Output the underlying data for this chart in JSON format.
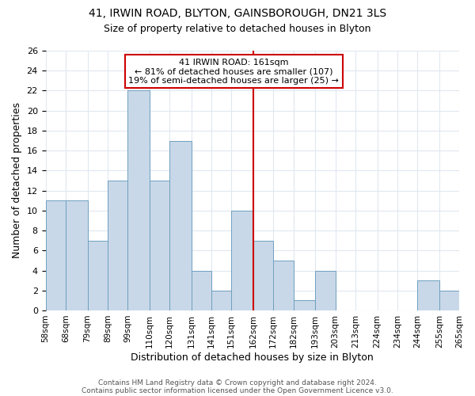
{
  "title1": "41, IRWIN ROAD, BLYTON, GAINSBOROUGH, DN21 3LS",
  "title2": "Size of property relative to detached houses in Blyton",
  "xlabel": "Distribution of detached houses by size in Blyton",
  "ylabel": "Number of detached properties",
  "footer1": "Contains HM Land Registry data © Crown copyright and database right 2024.",
  "footer2": "Contains public sector information licensed under the Open Government Licence v3.0.",
  "bin_edges": [
    58,
    68,
    79,
    89,
    99,
    110,
    120,
    131,
    141,
    151,
    162,
    172,
    182,
    193,
    203,
    213,
    224,
    234,
    244,
    255,
    265
  ],
  "bin_labels": [
    "58sqm",
    "68sqm",
    "79sqm",
    "89sqm",
    "99sqm",
    "110sqm",
    "120sqm",
    "131sqm",
    "141sqm",
    "151sqm",
    "162sqm",
    "172sqm",
    "182sqm",
    "193sqm",
    "203sqm",
    "213sqm",
    "224sqm",
    "234sqm",
    "244sqm",
    "255sqm",
    "265sqm"
  ],
  "bar_heights": [
    11,
    11,
    7,
    13,
    22,
    13,
    17,
    4,
    2,
    10,
    7,
    5,
    1,
    4,
    0,
    0,
    0,
    0,
    3,
    2
  ],
  "bar_color": "#c8d8e8",
  "bar_edgecolor": "#6fa0c0",
  "vline_x": 162,
  "vline_color": "#cc0000",
  "ylim": [
    0,
    26
  ],
  "yticks": [
    0,
    2,
    4,
    6,
    8,
    10,
    12,
    14,
    16,
    18,
    20,
    22,
    24,
    26
  ],
  "annotation_title": "41 IRWIN ROAD: 161sqm",
  "annotation_line1": "← 81% of detached houses are smaller (107)",
  "annotation_line2": "19% of semi-detached houses are larger (25) →",
  "annotation_box_color": "#ffffff",
  "annotation_box_edgecolor": "#cc0000",
  "background_color": "#ffffff",
  "grid_color": "#e0e8f0"
}
